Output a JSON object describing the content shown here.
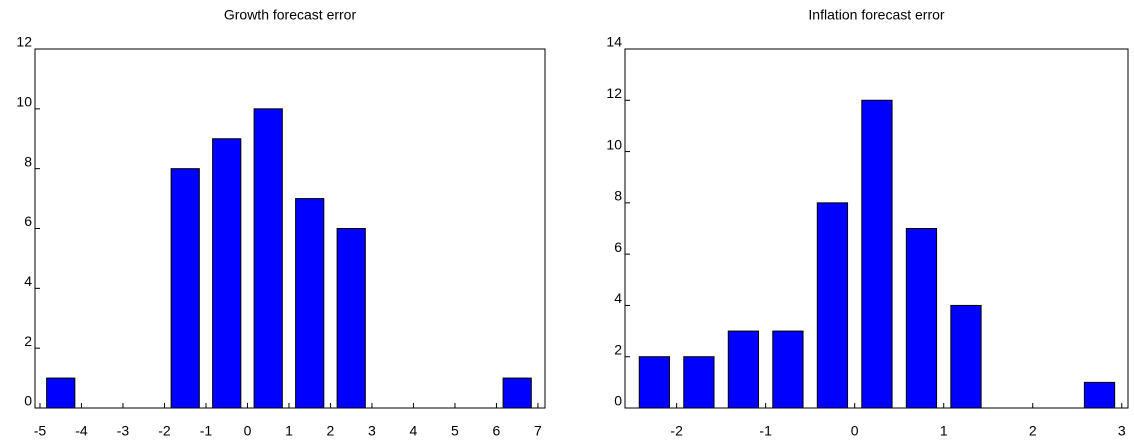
{
  "chart_data": [
    {
      "type": "histogram",
      "title": "Growth forecast error",
      "color": "#0000ff",
      "bins": [
        -5,
        -4,
        -3,
        -2,
        -1,
        0,
        1,
        2,
        3,
        4,
        5,
        6,
        7
      ],
      "values": [
        1,
        0,
        0,
        8,
        9,
        10,
        7,
        6,
        0,
        0,
        0,
        1
      ],
      "xlim": [
        -5.12,
        7.17
      ],
      "xticks": [
        -5,
        -4,
        -3,
        -2,
        -1,
        0,
        1,
        2,
        3,
        4,
        5,
        6,
        7
      ],
      "ylim": [
        0,
        12
      ],
      "yticks": [
        0,
        2,
        4,
        6,
        8,
        10,
        12
      ]
    },
    {
      "type": "histogram",
      "title": "Inflation forecast error",
      "color": "#0000ff",
      "bins": [
        -2.5,
        -2,
        -1.5,
        -1,
        -0.5,
        0,
        0.5,
        1,
        1.5,
        2,
        2.5,
        3
      ],
      "values": [
        2,
        2,
        3,
        3,
        8,
        12,
        7,
        4,
        0,
        0,
        1
      ],
      "xlim": [
        -2.58,
        3.07
      ],
      "xticks": [
        -2,
        -1,
        0,
        1,
        2,
        3
      ],
      "ylim": [
        0,
        14
      ],
      "yticks": [
        0,
        2,
        4,
        6,
        8,
        10,
        12,
        14
      ]
    }
  ]
}
